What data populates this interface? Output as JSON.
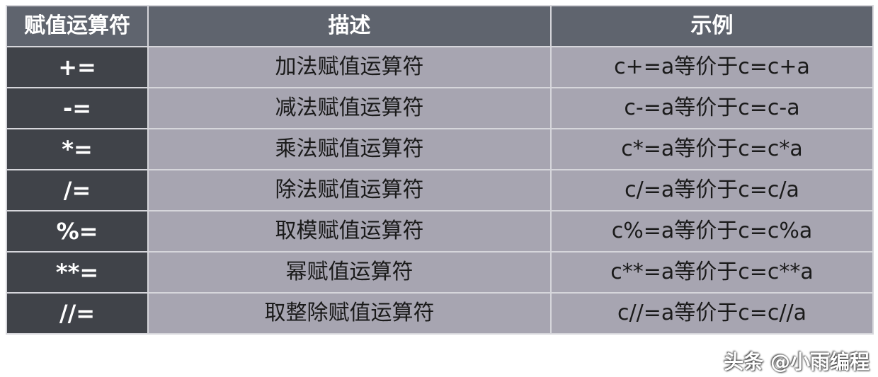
{
  "header": [
    "赋值运算符",
    "描述",
    "示例"
  ],
  "rows": [
    {
      "op": "+=",
      "desc": "加法赋值运算符",
      "example": "c+=a等价于c=c+a"
    },
    {
      "op": "-=",
      "desc": "减法赋值运算符",
      "example": "c-=a等价于c=c-a"
    },
    {
      "op": "*=",
      "desc": "乘法赋值运算符",
      "example": "c*=a等价于c=c*a"
    },
    {
      "op": "/=",
      "desc": "除法赋值运算符",
      "example": "c/=a等价于c=c/a"
    },
    {
      "op": "%=",
      "desc": "取模赋值运算符",
      "example": "c%=a等价于c=c%a"
    },
    {
      "op": "**=",
      "desc": "幂赋值运算符",
      "example": "c**=a等价于c=c**a"
    },
    {
      "op": "//=",
      "desc": "取整除赋值运算符",
      "example": "c//=a等价于c=c//a"
    }
  ],
  "watermark": "头条 @小雨编程",
  "colors": {
    "header": "#5f646e",
    "op_column": "#404349",
    "body": "#a7a5b1"
  }
}
